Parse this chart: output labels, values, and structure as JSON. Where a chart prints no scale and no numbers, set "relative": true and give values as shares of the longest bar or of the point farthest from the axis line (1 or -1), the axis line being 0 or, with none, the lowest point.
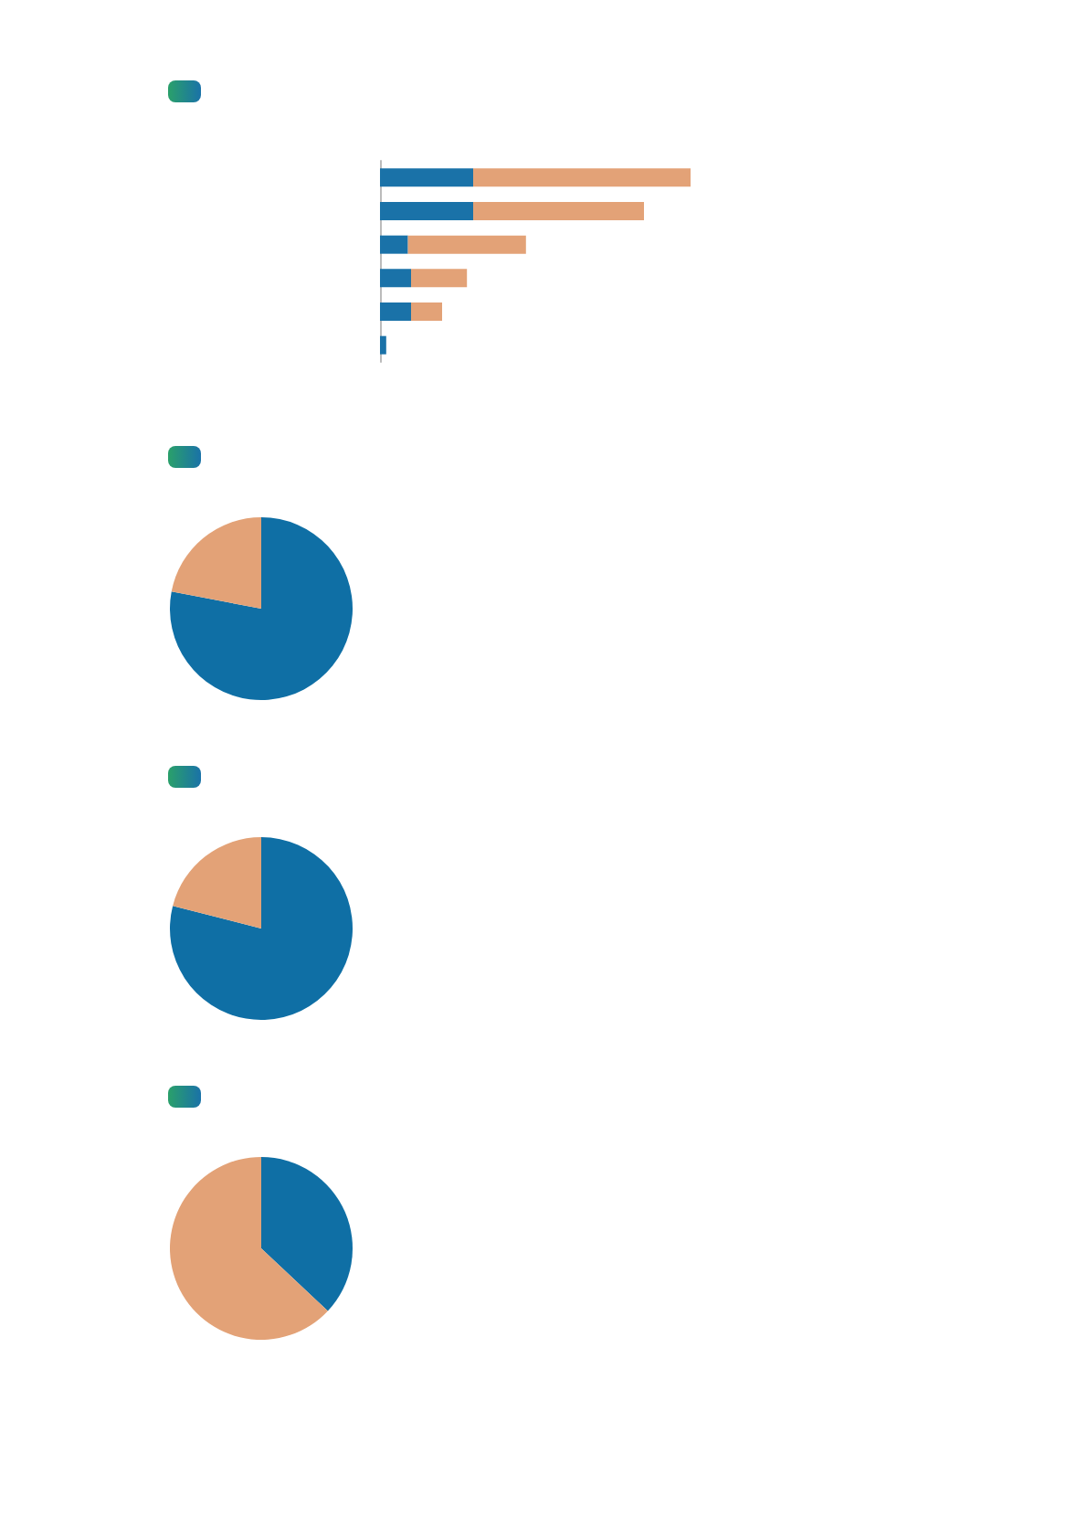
{
  "chart_data": [
    {
      "type": "bar",
      "orientation": "horizontal",
      "stacked": true,
      "relative": true,
      "categories": [
        null,
        null,
        null,
        null,
        null,
        null
      ],
      "series": [
        {
          "color": "#1a72a8",
          "values": [
            0.3,
            0.3,
            0.09,
            0.1,
            0.1,
            0.02
          ]
        },
        {
          "color": "#e3a277",
          "values": [
            0.7,
            0.55,
            0.38,
            0.18,
            0.1,
            0
          ]
        }
      ]
    },
    {
      "type": "pie",
      "categories": [
        null,
        null
      ],
      "values": [
        78,
        22
      ],
      "colors": [
        "#0f6fa5",
        "#e3a277"
      ]
    },
    {
      "type": "pie",
      "categories": [
        null,
        null
      ],
      "values": [
        79,
        21
      ],
      "colors": [
        "#0f6fa5",
        "#e3a277"
      ]
    },
    {
      "type": "pie",
      "categories": [
        null,
        null
      ],
      "values": [
        37,
        63
      ],
      "colors": [
        "#0f6fa5",
        "#e3a277"
      ]
    }
  ]
}
